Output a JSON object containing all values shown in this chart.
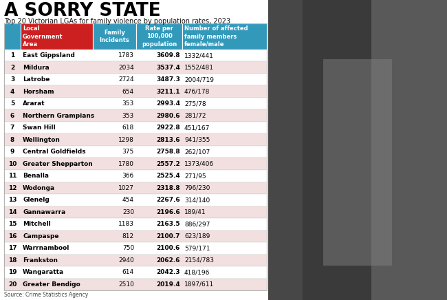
{
  "title": "A SORRY STATE",
  "subtitle": "Top 20 Victorian LGAs for family violence by population rates, 2023",
  "source": "Source: Crime Statistics Agency",
  "col_headers": [
    "Local\nGovernment\nArea",
    "Family\nIncidents",
    "Rate per\n100,000\npopulation",
    "Number of affected\nfamily members\nfemale/male"
  ],
  "rows": [
    [
      1,
      "East Gippsland",
      "1783",
      "3609.8",
      "1332/441"
    ],
    [
      2,
      "Mildura",
      "2034",
      "3537.4",
      "1552/481"
    ],
    [
      3,
      "Latrobe",
      "2724",
      "3487.3",
      "2004/719"
    ],
    [
      4,
      "Horsham",
      "654",
      "3211.1",
      "476/178"
    ],
    [
      5,
      "Ararat",
      "353",
      "2993.4",
      "275/78"
    ],
    [
      6,
      "Northern Grampians",
      "353",
      "2980.6",
      "281/72"
    ],
    [
      7,
      "Swan Hill",
      "618",
      "2922.8",
      "451/167"
    ],
    [
      8,
      "Wellington",
      "1298",
      "2813.6",
      "941/355"
    ],
    [
      9,
      "Central Goldfields",
      "375",
      "2758.8",
      "262/107"
    ],
    [
      10,
      "Greater Shepparton",
      "1780",
      "2557.2",
      "1373/406"
    ],
    [
      11,
      "Benalla",
      "366",
      "2525.4",
      "271/95"
    ],
    [
      12,
      "Wodonga",
      "1027",
      "2318.8",
      "796/230"
    ],
    [
      13,
      "Glenelg",
      "454",
      "2267.6",
      "314/140"
    ],
    [
      14,
      "Gannawarra",
      "230",
      "2196.6",
      "189/41"
    ],
    [
      15,
      "Mitchell",
      "1183",
      "2163.5",
      "886/297"
    ],
    [
      16,
      "Campaspe",
      "812",
      "2100.7",
      "623/189"
    ],
    [
      17,
      "Warrnambool",
      "750",
      "2100.6",
      "579/171"
    ],
    [
      18,
      "Frankston",
      "2940",
      "2062.6",
      "2154/783"
    ],
    [
      19,
      "Wangaratta",
      "614",
      "2042.3",
      "418/196"
    ],
    [
      20,
      "Greater Bendigo",
      "2510",
      "2019.4",
      "1897/611"
    ]
  ],
  "header_bg_red": "#cc2020",
  "header_bg_cyan": "#3399bb",
  "header_text_color": "#ffffff",
  "row_odd_bg": "#ffffff",
  "row_even_bg": "#f2e0e0",
  "title_color": "#000000",
  "subtitle_color": "#111111",
  "table_text_color": "#000000",
  "bg_color": "#ffffff",
  "photo_bg": "#555555",
  "photo_mid": "#777777",
  "photo_light": "#999999"
}
